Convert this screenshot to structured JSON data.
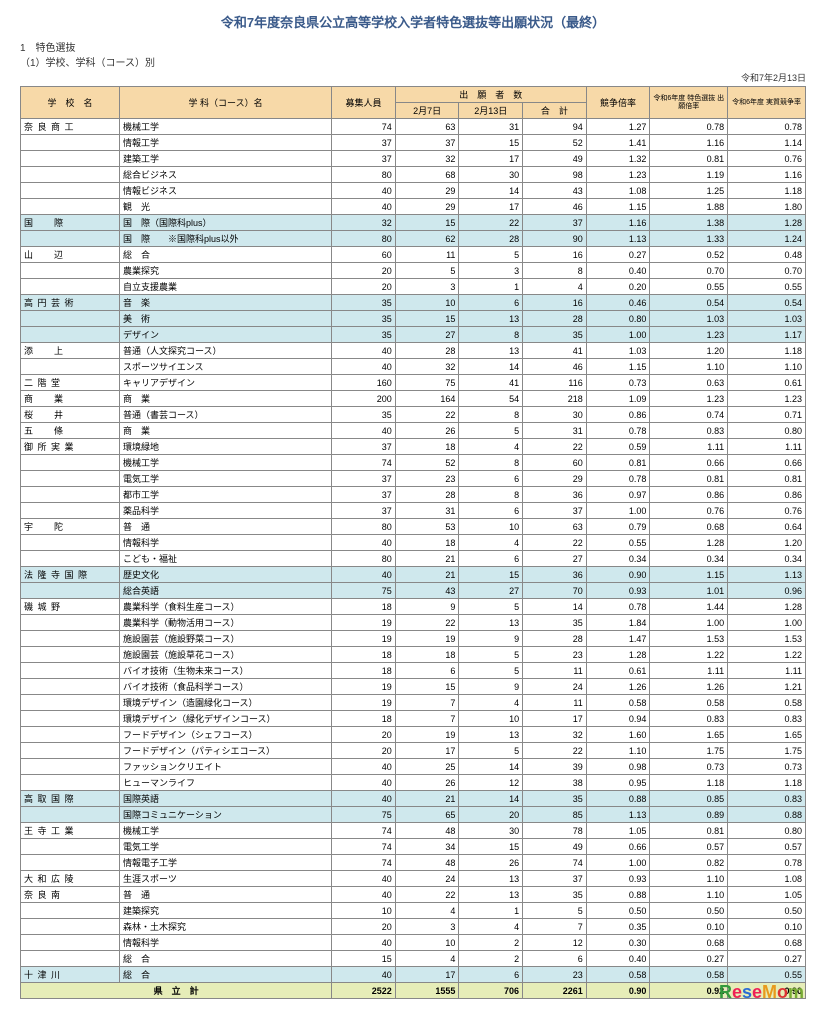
{
  "title": "令和7年度奈良県公立高等学校入学者特色選抜等出願状況（最終）",
  "sub1": "1　特色選抜",
  "sub2": "（1）学校、学科（コース）別",
  "dateRight": "令和7年2月13日",
  "headers": {
    "school": "学　校　名",
    "course": "学 科（コース）名",
    "capacity": "募集人員",
    "appGroup": "出　願　者　数",
    "feb7": "2月7日",
    "feb13": "2月13日",
    "total": "合　計",
    "ratio": "競争倍率",
    "prevCap": "令和6年度\n特色選抜\n出願倍率",
    "prevRatio": "令和6年度\n実質競争率"
  },
  "rows": [
    {
      "school": "奈 良 商 工",
      "course": "機械工学",
      "cap": 74,
      "a": 63,
      "b": 31,
      "t": 94,
      "r": "1.27",
      "p": "0.78",
      "q": "0.78"
    },
    {
      "school": "",
      "course": "情報工学",
      "cap": 37,
      "a": 37,
      "b": 15,
      "t": 52,
      "r": "1.41",
      "p": "1.16",
      "q": "1.14"
    },
    {
      "school": "",
      "course": "建築工学",
      "cap": 37,
      "a": 32,
      "b": 17,
      "t": 49,
      "r": "1.32",
      "p": "0.81",
      "q": "0.76"
    },
    {
      "school": "",
      "course": "総合ビジネス",
      "cap": 80,
      "a": 68,
      "b": 30,
      "t": 98,
      "r": "1.23",
      "p": "1.19",
      "q": "1.16"
    },
    {
      "school": "",
      "course": "情報ビジネス",
      "cap": 40,
      "a": 29,
      "b": 14,
      "t": 43,
      "r": "1.08",
      "p": "1.25",
      "q": "1.18"
    },
    {
      "school": "",
      "course": "観　光",
      "cap": 40,
      "a": 29,
      "b": 17,
      "t": 46,
      "r": "1.15",
      "p": "1.88",
      "q": "1.80"
    },
    {
      "section": true,
      "school": "国　　際",
      "course": "国　際（国際科plus）",
      "cap": 32,
      "a": 15,
      "b": 22,
      "t": 37,
      "r": "1.16",
      "p": "1.38",
      "q": "1.28"
    },
    {
      "section": true,
      "school": "",
      "course": "国　際　　※国際科plus以外",
      "cap": 80,
      "a": 62,
      "b": 28,
      "t": 90,
      "r": "1.13",
      "p": "1.33",
      "q": "1.24"
    },
    {
      "school": "山　　辺",
      "course": "総　合",
      "cap": 60,
      "a": 11,
      "b": 5,
      "t": 16,
      "r": "0.27",
      "p": "0.52",
      "q": "0.48"
    },
    {
      "school": "",
      "course": "農業探究",
      "cap": 20,
      "a": 5,
      "b": 3,
      "t": 8,
      "r": "0.40",
      "p": "0.70",
      "q": "0.70"
    },
    {
      "school": "",
      "course": "自立支援農業",
      "cap": 20,
      "a": 3,
      "b": 1,
      "t": 4,
      "r": "0.20",
      "p": "0.55",
      "q": "0.55"
    },
    {
      "section": true,
      "school": "高 円 芸 術",
      "course": "音　楽",
      "cap": 35,
      "a": 10,
      "b": 6,
      "t": 16,
      "r": "0.46",
      "p": "0.54",
      "q": "0.54"
    },
    {
      "section": true,
      "school": "",
      "course": "美　術",
      "cap": 35,
      "a": 15,
      "b": 13,
      "t": 28,
      "r": "0.80",
      "p": "1.03",
      "q": "1.03"
    },
    {
      "section": true,
      "school": "",
      "course": "デザイン",
      "cap": 35,
      "a": 27,
      "b": 8,
      "t": 35,
      "r": "1.00",
      "p": "1.23",
      "q": "1.17"
    },
    {
      "school": "添　　上",
      "course": "普通（人文探究コース）",
      "cap": 40,
      "a": 28,
      "b": 13,
      "t": 41,
      "r": "1.03",
      "p": "1.20",
      "q": "1.18"
    },
    {
      "school": "",
      "course": "スポーツサイエンス",
      "cap": 40,
      "a": 32,
      "b": 14,
      "t": 46,
      "r": "1.15",
      "p": "1.10",
      "q": "1.10"
    },
    {
      "school": "二 階 堂",
      "course": "キャリアデザイン",
      "cap": 160,
      "a": 75,
      "b": 41,
      "t": 116,
      "r": "0.73",
      "p": "0.63",
      "q": "0.61"
    },
    {
      "school": "商　　業",
      "course": "商　業",
      "cap": 200,
      "a": 164,
      "b": 54,
      "t": 218,
      "r": "1.09",
      "p": "1.23",
      "q": "1.23"
    },
    {
      "school": "桜　　井",
      "course": "普通（書芸コース）",
      "cap": 35,
      "a": 22,
      "b": 8,
      "t": 30,
      "r": "0.86",
      "p": "0.74",
      "q": "0.71"
    },
    {
      "school": "五　　條",
      "course": "商　業",
      "cap": 40,
      "a": 26,
      "b": 5,
      "t": 31,
      "r": "0.78",
      "p": "0.83",
      "q": "0.80"
    },
    {
      "school": "御 所 実 業",
      "course": "環境緑地",
      "cap": 37,
      "a": 18,
      "b": 4,
      "t": 22,
      "r": "0.59",
      "p": "1.11",
      "q": "1.11"
    },
    {
      "school": "",
      "course": "機械工学",
      "cap": 74,
      "a": 52,
      "b": 8,
      "t": 60,
      "r": "0.81",
      "p": "0.66",
      "q": "0.66"
    },
    {
      "school": "",
      "course": "電気工学",
      "cap": 37,
      "a": 23,
      "b": 6,
      "t": 29,
      "r": "0.78",
      "p": "0.81",
      "q": "0.81"
    },
    {
      "school": "",
      "course": "都市工学",
      "cap": 37,
      "a": 28,
      "b": 8,
      "t": 36,
      "r": "0.97",
      "p": "0.86",
      "q": "0.86"
    },
    {
      "school": "",
      "course": "薬品科学",
      "cap": 37,
      "a": 31,
      "b": 6,
      "t": 37,
      "r": "1.00",
      "p": "0.76",
      "q": "0.76"
    },
    {
      "school": "宇　　陀",
      "course": "普　通",
      "cap": 80,
      "a": 53,
      "b": 10,
      "t": 63,
      "r": "0.79",
      "p": "0.68",
      "q": "0.64"
    },
    {
      "school": "",
      "course": "情報科学",
      "cap": 40,
      "a": 18,
      "b": 4,
      "t": 22,
      "r": "0.55",
      "p": "1.28",
      "q": "1.20"
    },
    {
      "school": "",
      "course": "こども・福祉",
      "cap": 80,
      "a": 21,
      "b": 6,
      "t": 27,
      "r": "0.34",
      "p": "0.34",
      "q": "0.34"
    },
    {
      "section": true,
      "school": "法 隆 寺 国 際",
      "course": "歴史文化",
      "cap": 40,
      "a": 21,
      "b": 15,
      "t": 36,
      "r": "0.90",
      "p": "1.15",
      "q": "1.13"
    },
    {
      "section": true,
      "school": "",
      "course": "総合英語",
      "cap": 75,
      "a": 43,
      "b": 27,
      "t": 70,
      "r": "0.93",
      "p": "1.01",
      "q": "0.96"
    },
    {
      "school": "磯 城 野",
      "course": "農業科学（食料生産コース）",
      "cap": 18,
      "a": 9,
      "b": 5,
      "t": 14,
      "r": "0.78",
      "p": "1.44",
      "q": "1.28"
    },
    {
      "school": "",
      "course": "農業科学（動物活用コース）",
      "cap": 19,
      "a": 22,
      "b": 13,
      "t": 35,
      "r": "1.84",
      "p": "1.00",
      "q": "1.00"
    },
    {
      "school": "",
      "course": "施設園芸（施設野菜コース）",
      "cap": 19,
      "a": 19,
      "b": 9,
      "t": 28,
      "r": "1.47",
      "p": "1.53",
      "q": "1.53"
    },
    {
      "school": "",
      "course": "施設園芸（施設草花コース）",
      "cap": 18,
      "a": 18,
      "b": 5,
      "t": 23,
      "r": "1.28",
      "p": "1.22",
      "q": "1.22"
    },
    {
      "school": "",
      "course": "バイオ技術（生物未来コース）",
      "cap": 18,
      "a": 6,
      "b": 5,
      "t": 11,
      "r": "0.61",
      "p": "1.11",
      "q": "1.11"
    },
    {
      "school": "",
      "course": "バイオ技術（食品科学コース）",
      "cap": 19,
      "a": 15,
      "b": 9,
      "t": 24,
      "r": "1.26",
      "p": "1.26",
      "q": "1.21"
    },
    {
      "school": "",
      "course": "環境デザイン（造園緑化コース）",
      "cap": 19,
      "a": 7,
      "b": 4,
      "t": 11,
      "r": "0.58",
      "p": "0.58",
      "q": "0.58"
    },
    {
      "school": "",
      "course": "環境デザイン（緑化デザインコース）",
      "cap": 18,
      "a": 7,
      "b": 10,
      "t": 17,
      "r": "0.94",
      "p": "0.83",
      "q": "0.83"
    },
    {
      "school": "",
      "course": "フードデザイン（シェフコース）",
      "cap": 20,
      "a": 19,
      "b": 13,
      "t": 32,
      "r": "1.60",
      "p": "1.65",
      "q": "1.65"
    },
    {
      "school": "",
      "course": "フードデザイン（パティシエコース）",
      "cap": 20,
      "a": 17,
      "b": 5,
      "t": 22,
      "r": "1.10",
      "p": "1.75",
      "q": "1.75"
    },
    {
      "school": "",
      "course": "ファッションクリエイト",
      "cap": 40,
      "a": 25,
      "b": 14,
      "t": 39,
      "r": "0.98",
      "p": "0.73",
      "q": "0.73"
    },
    {
      "school": "",
      "course": "ヒューマンライフ",
      "cap": 40,
      "a": 26,
      "b": 12,
      "t": 38,
      "r": "0.95",
      "p": "1.18",
      "q": "1.18"
    },
    {
      "section": true,
      "school": "高 取 国 際",
      "course": "国際英語",
      "cap": 40,
      "a": 21,
      "b": 14,
      "t": 35,
      "r": "0.88",
      "p": "0.85",
      "q": "0.83"
    },
    {
      "section": true,
      "school": "",
      "course": "国際コミュニケーション",
      "cap": 75,
      "a": 65,
      "b": 20,
      "t": 85,
      "r": "1.13",
      "p": "0.89",
      "q": "0.88"
    },
    {
      "school": "王 寺 工 業",
      "course": "機械工学",
      "cap": 74,
      "a": 48,
      "b": 30,
      "t": 78,
      "r": "1.05",
      "p": "0.81",
      "q": "0.80"
    },
    {
      "school": "",
      "course": "電気工学",
      "cap": 74,
      "a": 34,
      "b": 15,
      "t": 49,
      "r": "0.66",
      "p": "0.57",
      "q": "0.57"
    },
    {
      "school": "",
      "course": "情報電子工学",
      "cap": 74,
      "a": 48,
      "b": 26,
      "t": 74,
      "r": "1.00",
      "p": "0.82",
      "q": "0.78"
    },
    {
      "school": "大 和 広 陵",
      "course": "生涯スポーツ",
      "cap": 40,
      "a": 24,
      "b": 13,
      "t": 37,
      "r": "0.93",
      "p": "1.10",
      "q": "1.08"
    },
    {
      "school": "奈 良 南",
      "course": "普　通",
      "cap": 40,
      "a": 22,
      "b": 13,
      "t": 35,
      "r": "0.88",
      "p": "1.10",
      "q": "1.05"
    },
    {
      "school": "",
      "course": "建築探究",
      "cap": 10,
      "a": 4,
      "b": 1,
      "t": 5,
      "r": "0.50",
      "p": "0.50",
      "q": "0.50"
    },
    {
      "school": "",
      "course": "森林・土木探究",
      "cap": 20,
      "a": 3,
      "b": 4,
      "t": 7,
      "r": "0.35",
      "p": "0.10",
      "q": "0.10"
    },
    {
      "school": "",
      "course": "情報科学",
      "cap": 40,
      "a": 10,
      "b": 2,
      "t": 12,
      "r": "0.30",
      "p": "0.68",
      "q": "0.68"
    },
    {
      "school": "",
      "course": "総　合",
      "cap": 15,
      "a": 4,
      "b": 2,
      "t": 6,
      "r": "0.40",
      "p": "0.27",
      "q": "0.27"
    },
    {
      "section": true,
      "school": "十 津 川",
      "course": "総　合",
      "cap": 40,
      "a": 17,
      "b": 6,
      "t": 23,
      "r": "0.58",
      "p": "0.58",
      "q": "0.55"
    }
  ],
  "total": {
    "label": "県　立　計",
    "cap": 2522,
    "a": 1555,
    "b": 706,
    "t": 2261,
    "r": "0.90",
    "p": "0.92",
    "q": "0.90"
  },
  "logo": "ReseMom"
}
